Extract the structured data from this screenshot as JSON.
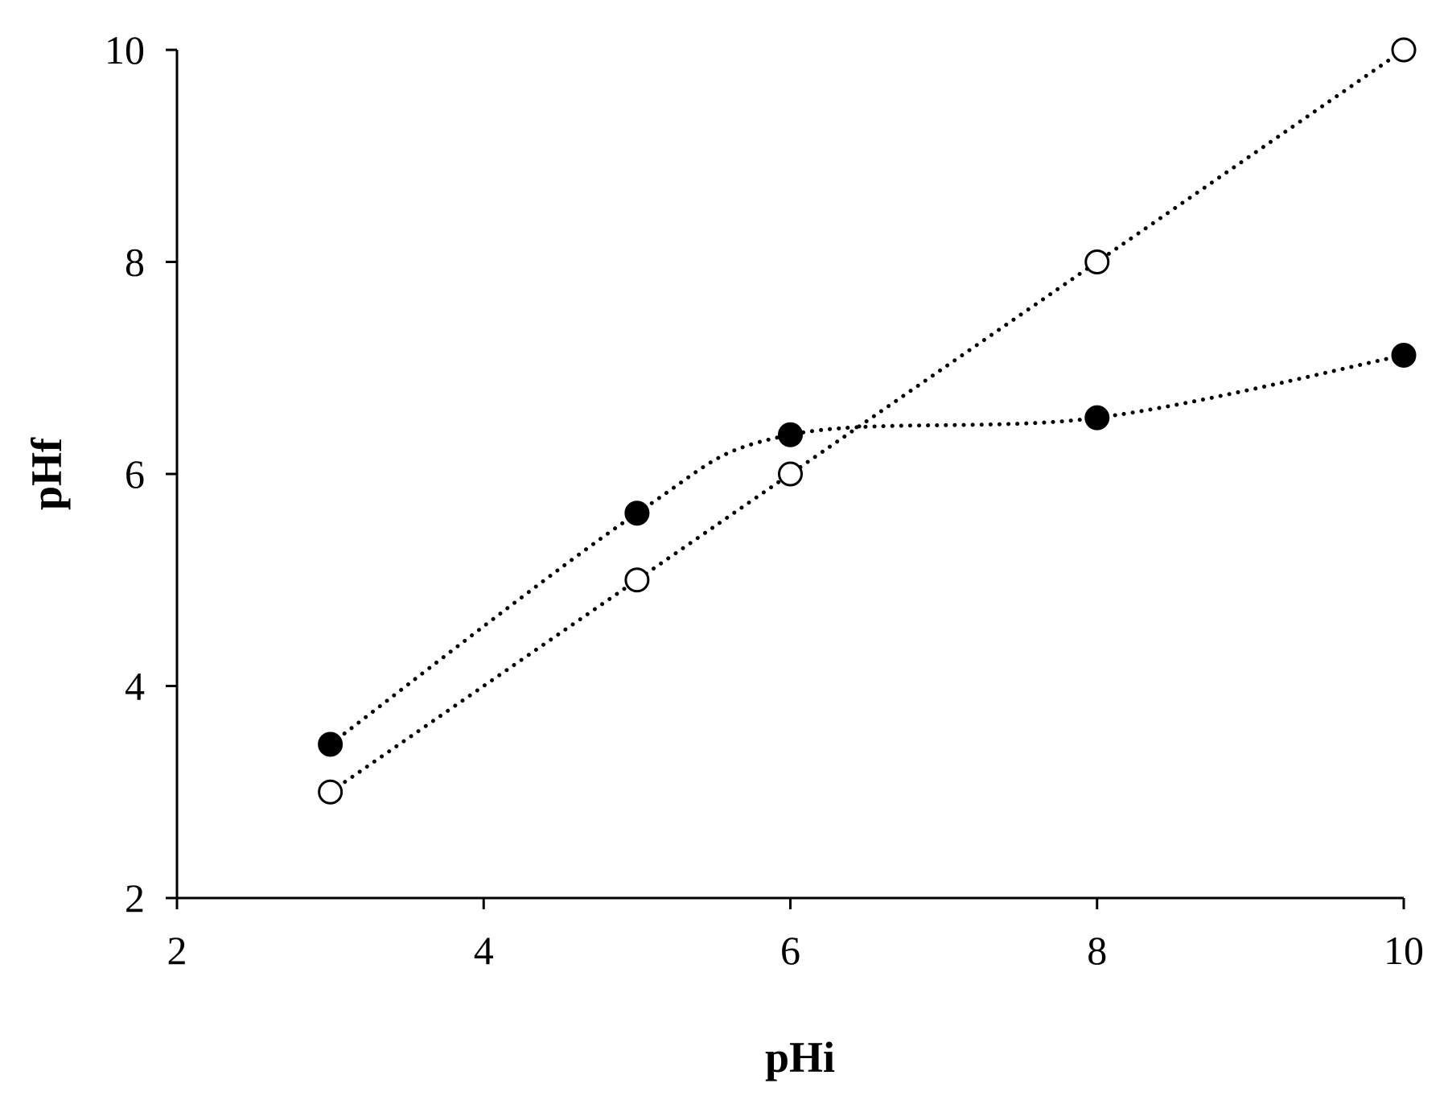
{
  "chart_data": {
    "type": "line",
    "title": "",
    "xlabel": "pHi",
    "ylabel": "pHf",
    "xlim": [
      2,
      10
    ],
    "ylim": [
      2,
      10
    ],
    "x_ticks": [
      "2",
      "4",
      "6",
      "8",
      "10"
    ],
    "y_ticks": [
      "2",
      "4",
      "6",
      "8",
      "10"
    ],
    "grid": false,
    "line_style": "dotted",
    "series": [
      {
        "marker": "filled-circle",
        "color": "#000000",
        "points": [
          {
            "x": 3,
            "y": 3.45
          },
          {
            "x": 5,
            "y": 5.63
          },
          {
            "x": 6,
            "y": 6.37
          },
          {
            "x": 8,
            "y": 6.53
          },
          {
            "x": 10,
            "y": 7.12
          }
        ]
      },
      {
        "marker": "open-circle",
        "color": "#000000",
        "points": [
          {
            "x": 3,
            "y": 3.0
          },
          {
            "x": 5,
            "y": 5.0
          },
          {
            "x": 6,
            "y": 6.0
          },
          {
            "x": 8,
            "y": 8.0
          },
          {
            "x": 10,
            "y": 10.0
          }
        ]
      }
    ]
  }
}
